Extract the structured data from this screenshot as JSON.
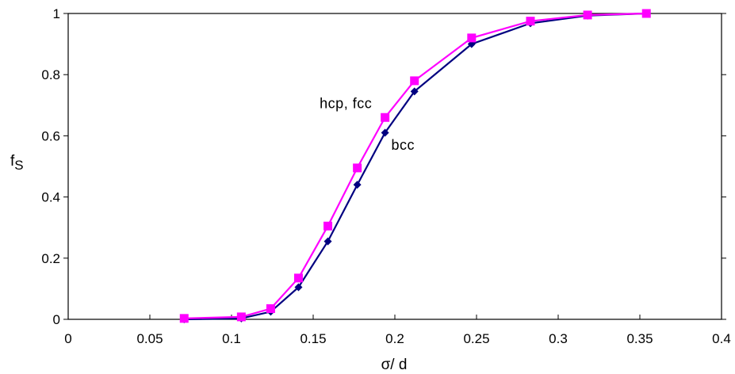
{
  "chart_data": {
    "type": "line",
    "title": "",
    "xlabel": "σ/ d",
    "ylabel_main": "f",
    "ylabel_sub": "S",
    "xlim": [
      0,
      0.4
    ],
    "ylim": [
      0,
      1
    ],
    "x_ticks": [
      "0",
      "0.05",
      "0.1",
      "0.15",
      "0.2",
      "0.25",
      "0.3",
      "0.35",
      "0.4"
    ],
    "y_ticks": [
      "0",
      "0.2",
      "0.4",
      "0.6",
      "0.8",
      "1"
    ],
    "x_tick_values": [
      0,
      0.05,
      0.1,
      0.15,
      0.2,
      0.25,
      0.3,
      0.35,
      0.4
    ],
    "y_tick_values": [
      0,
      0.2,
      0.4,
      0.6,
      0.8,
      1
    ],
    "grid": false,
    "annotations": [
      {
        "text": "hcp, fcc",
        "x": 0.17,
        "y": 0.69
      },
      {
        "text": "bcc",
        "x": 0.205,
        "y": 0.555
      }
    ],
    "series": [
      {
        "marker": "diamond",
        "color": "#000080",
        "x": [
          0.071,
          0.106,
          0.124,
          0.141,
          0.159,
          0.177,
          0.194,
          0.212,
          0.247,
          0.283,
          0.318,
          0.354
        ],
        "y": [
          0.0,
          0.003,
          0.025,
          0.105,
          0.255,
          0.44,
          0.61,
          0.745,
          0.9,
          0.968,
          0.993,
          1.0
        ]
      },
      {
        "marker": "square",
        "color": "#ff00ff",
        "x": [
          0.071,
          0.106,
          0.124,
          0.141,
          0.159,
          0.177,
          0.194,
          0.212,
          0.247,
          0.283,
          0.318,
          0.354
        ],
        "y": [
          0.003,
          0.008,
          0.035,
          0.135,
          0.305,
          0.495,
          0.66,
          0.78,
          0.92,
          0.975,
          0.995,
          1.0
        ]
      }
    ]
  }
}
